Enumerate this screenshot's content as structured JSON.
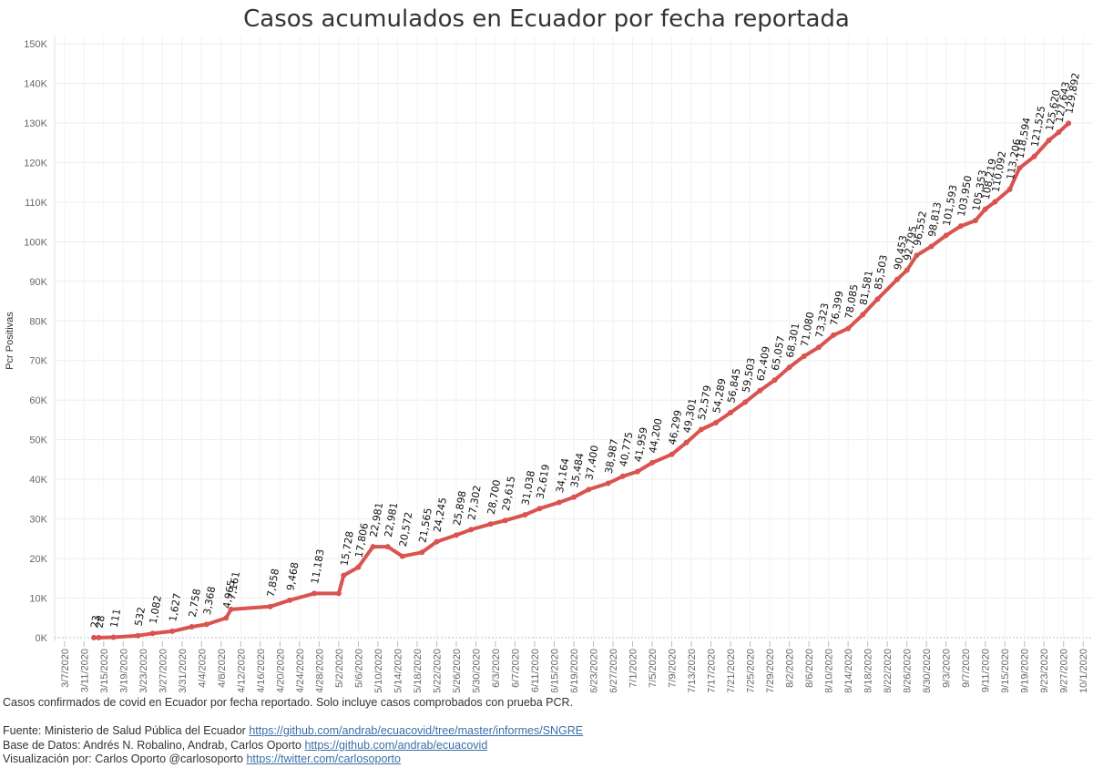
{
  "chart_data": {
    "type": "line",
    "title": "Casos acumulados en Ecuador por fecha reportada",
    "ylabel": "Pcr Positivas",
    "xlabel": "",
    "ylim": [
      0,
      150000
    ],
    "y_ticks": [
      {
        "value": 0,
        "label": "0K"
      },
      {
        "value": 10000,
        "label": "10K"
      },
      {
        "value": 20000,
        "label": "20K"
      },
      {
        "value": 30000,
        "label": "30K"
      },
      {
        "value": 40000,
        "label": "40K"
      },
      {
        "value": 50000,
        "label": "50K"
      },
      {
        "value": 60000,
        "label": "60K"
      },
      {
        "value": 70000,
        "label": "70K"
      },
      {
        "value": 80000,
        "label": "80K"
      },
      {
        "value": 90000,
        "label": "90K"
      },
      {
        "value": 100000,
        "label": "100K"
      },
      {
        "value": 110000,
        "label": "110K"
      },
      {
        "value": 120000,
        "label": "120K"
      },
      {
        "value": 130000,
        "label": "130K"
      },
      {
        "value": 140000,
        "label": "140K"
      },
      {
        "value": 150000,
        "label": "150K"
      }
    ],
    "x_range": [
      "2020-03-05",
      "2020-10-03"
    ],
    "x_tick_labels": [
      "3/7/2020",
      "3/11/2020",
      "3/15/2020",
      "3/19/2020",
      "3/23/2020",
      "3/27/2020",
      "3/31/2020",
      "4/4/2020",
      "4/8/2020",
      "4/12/2020",
      "4/16/2020",
      "4/20/2020",
      "4/24/2020",
      "4/28/2020",
      "5/2/2020",
      "5/6/2020",
      "5/10/2020",
      "5/14/2020",
      "5/18/2020",
      "5/22/2020",
      "5/26/2020",
      "5/30/2020",
      "6/3/2020",
      "6/7/2020",
      "6/11/2020",
      "6/15/2020",
      "6/19/2020",
      "6/23/2020",
      "6/27/2020",
      "7/1/2020",
      "7/5/2020",
      "7/9/2020",
      "7/13/2020",
      "7/17/2020",
      "7/21/2020",
      "7/25/2020",
      "7/29/2020",
      "8/2/2020",
      "8/6/2020",
      "8/10/2020",
      "8/14/2020",
      "8/18/2020",
      "8/22/2020",
      "8/26/2020",
      "8/30/2020",
      "9/3/2020",
      "9/7/2020",
      "9/11/2020",
      "9/15/2020",
      "9/19/2020",
      "9/23/2020",
      "9/27/2020",
      "10/1/2020"
    ],
    "grid": true,
    "line_color": "#d9534f",
    "points": [
      {
        "x": "2020-03-13",
        "y": 23
      },
      {
        "x": "2020-03-14",
        "y": 28
      },
      {
        "x": "2020-03-17",
        "y": 111
      },
      {
        "x": "2020-03-22",
        "y": 532
      },
      {
        "x": "2020-03-25",
        "y": 1082
      },
      {
        "x": "2020-03-29",
        "y": 1627
      },
      {
        "x": "2020-04-02",
        "y": 2758
      },
      {
        "x": "2020-04-05",
        "y": 3368
      },
      {
        "x": "2020-04-09",
        "y": 4965
      },
      {
        "x": "2020-04-10",
        "y": 7161
      },
      {
        "x": "2020-04-18",
        "y": 7858
      },
      {
        "x": "2020-04-22",
        "y": 9468
      },
      {
        "x": "2020-04-27",
        "y": 11183
      },
      {
        "x": "2020-05-02",
        "y": 11183
      },
      {
        "x": "2020-05-03",
        "y": 15728
      },
      {
        "x": "2020-05-06",
        "y": 17806
      },
      {
        "x": "2020-05-09",
        "y": 22981
      },
      {
        "x": "2020-05-12",
        "y": 22981
      },
      {
        "x": "2020-05-15",
        "y": 20572
      },
      {
        "x": "2020-05-19",
        "y": 21565
      },
      {
        "x": "2020-05-22",
        "y": 24245
      },
      {
        "x": "2020-05-26",
        "y": 25898
      },
      {
        "x": "2020-05-29",
        "y": 27302
      },
      {
        "x": "2020-06-02",
        "y": 28700
      },
      {
        "x": "2020-06-05",
        "y": 29615
      },
      {
        "x": "2020-06-09",
        "y": 31038
      },
      {
        "x": "2020-06-12",
        "y": 32619
      },
      {
        "x": "2020-06-16",
        "y": 34164
      },
      {
        "x": "2020-06-19",
        "y": 35484
      },
      {
        "x": "2020-06-22",
        "y": 37400
      },
      {
        "x": "2020-06-26",
        "y": 38987
      },
      {
        "x": "2020-06-29",
        "y": 40775
      },
      {
        "x": "2020-07-02",
        "y": 41959
      },
      {
        "x": "2020-07-05",
        "y": 44200
      },
      {
        "x": "2020-07-09",
        "y": 46299
      },
      {
        "x": "2020-07-12",
        "y": 49301
      },
      {
        "x": "2020-07-15",
        "y": 52579
      },
      {
        "x": "2020-07-18",
        "y": 54289
      },
      {
        "x": "2020-07-21",
        "y": 56845
      },
      {
        "x": "2020-07-24",
        "y": 59503
      },
      {
        "x": "2020-07-27",
        "y": 62409
      },
      {
        "x": "2020-07-30",
        "y": 65057
      },
      {
        "x": "2020-08-02",
        "y": 68301
      },
      {
        "x": "2020-08-05",
        "y": 71080
      },
      {
        "x": "2020-08-08",
        "y": 73323
      },
      {
        "x": "2020-08-11",
        "y": 76399
      },
      {
        "x": "2020-08-14",
        "y": 78085
      },
      {
        "x": "2020-08-17",
        "y": 81581
      },
      {
        "x": "2020-08-20",
        "y": 85503
      },
      {
        "x": "2020-08-24",
        "y": 90453
      },
      {
        "x": "2020-08-26",
        "y": 92795
      },
      {
        "x": "2020-08-28",
        "y": 96552
      },
      {
        "x": "2020-08-31",
        "y": 98813
      },
      {
        "x": "2020-09-03",
        "y": 101593
      },
      {
        "x": "2020-09-06",
        "y": 103950
      },
      {
        "x": "2020-09-09",
        "y": 105353
      },
      {
        "x": "2020-09-11",
        "y": 108219
      },
      {
        "x": "2020-09-13",
        "y": 110092
      },
      {
        "x": "2020-09-16",
        "y": 113206
      },
      {
        "x": "2020-09-18",
        "y": 118594
      },
      {
        "x": "2020-09-21",
        "y": 121525
      },
      {
        "x": "2020-09-24",
        "y": 125620
      },
      {
        "x": "2020-09-26",
        "y": 127643
      },
      {
        "x": "2020-09-28",
        "y": 129892
      }
    ],
    "point_labels": [
      "23",
      "28",
      "111",
      "532",
      "1,082",
      "1,627",
      "2,758",
      "3,368",
      "4,965",
      "7,161",
      "7,858",
      "9,468",
      "11,183",
      "",
      "15,728",
      "17,806",
      "22,981",
      "22,981",
      "20,572",
      "21,565",
      "24,245",
      "25,898",
      "27,302",
      "28,700",
      "29,615",
      "31,038",
      "32,619",
      "34,164",
      "35,484",
      "37,400",
      "38,987",
      "40,775",
      "41,959",
      "44,200",
      "46,299",
      "49,301",
      "52,579",
      "54,289",
      "56,845",
      "59,503",
      "62,409",
      "65,057",
      "68,301",
      "71,080",
      "73,323",
      "76,399",
      "78,085",
      "81,581",
      "85,503",
      "90,453",
      "92,795",
      "96,552",
      "98,813",
      "101,593",
      "103,950",
      "105,353",
      "108,219",
      "110,092",
      "113,206",
      "118,594",
      "121,525",
      "125,620",
      "127,643",
      "129,892"
    ]
  },
  "footer": {
    "description": "Casos confirmados de covid en Ecuador por fecha reportado. Solo incluye casos comprobados con prueba PCR.",
    "source_label": "Fuente: Ministerio de Salud Pública del Ecuador",
    "source_link": "https://github.com/andrab/ecuacovid/tree/master/informes/SNGRE",
    "database_label": "Base de Datos: Andrés N. Robalino, Andrab, Carlos Oporto",
    "database_link": "https://github.com/andrab/ecuacovid",
    "viz_label": "Visualización por: Carlos Oporto @carlosoporto",
    "viz_link": "https://twitter.com/carlosoporto"
  }
}
